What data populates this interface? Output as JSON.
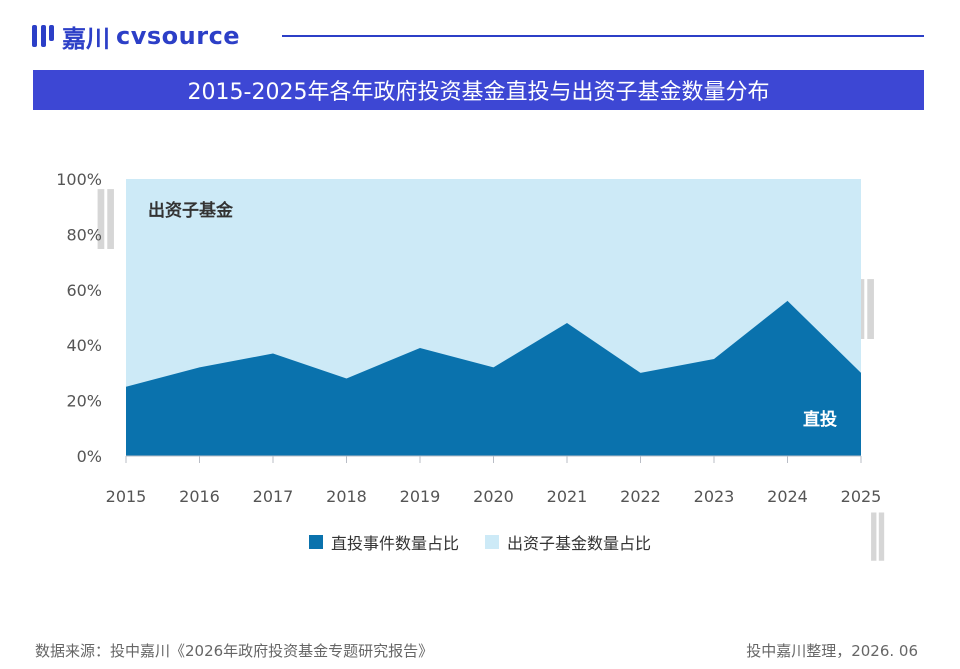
{
  "header": {
    "logo_cn": "嘉川",
    "logo_en": "cvsource"
  },
  "title": "2015-2025年各年政府投资基金直投与出资子基金数量分布",
  "colors": {
    "brand": "#2c3fc7",
    "title_bg": "#3d47d4",
    "direct": "#0a72ad",
    "fund": "#cdeaf7"
  },
  "chart_data": {
    "type": "area",
    "x": [
      "2015",
      "2016",
      "2017",
      "2018",
      "2019",
      "2020",
      "2021",
      "2022",
      "2023",
      "2024",
      "2025"
    ],
    "ylim": [
      0,
      100
    ],
    "yticks": [
      "0%",
      "20%",
      "40%",
      "60%",
      "80%",
      "100%"
    ],
    "stacked_percent": true,
    "series": [
      {
        "name": "直投事件数量占比",
        "values": [
          25,
          32,
          37,
          28,
          39,
          32,
          48,
          30,
          35,
          56,
          30
        ],
        "color": "#0a72ad"
      },
      {
        "name": "出资子基金数量占比",
        "values": [
          75,
          68,
          63,
          72,
          61,
          68,
          52,
          70,
          65,
          44,
          70
        ],
        "color": "#cdeaf7"
      }
    ],
    "annotations": {
      "fund_area_label": "出资子基金",
      "direct_area_label": "直投"
    }
  },
  "footer": {
    "source": "数据来源：投中嘉川《2026年政府投资基金专题研究报告》",
    "credit": "投中嘉川整理，2026. 06"
  }
}
